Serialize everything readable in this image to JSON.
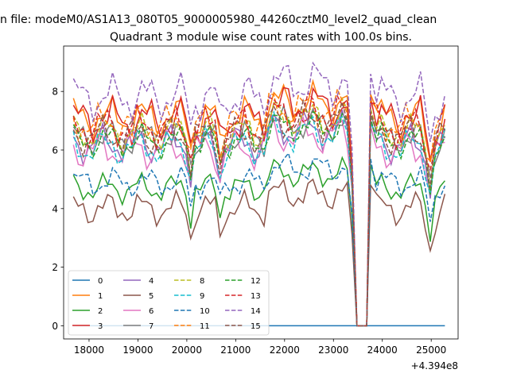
{
  "suptitle": "n file: modeM0/AS1A13_080T05_9000005980_44260cztM0_level2_quad_clean",
  "chart_data": {
    "type": "line",
    "title": "Quadrant 3 module wise count rates with 100.0s bins.",
    "xlabel": "",
    "ylabel": "",
    "x_offset_label": "+4.394e8",
    "xlim": [
      17480,
      25550
    ],
    "ylim": [
      -0.45,
      9.55
    ],
    "x_ticks": [
      18000,
      19000,
      20000,
      21000,
      22000,
      23000,
      24000,
      25000
    ],
    "x_tick_labels": [
      "18000",
      "19000",
      "20000",
      "21000",
      "22000",
      "23000",
      "24000",
      "25000"
    ],
    "y_ticks": [
      0,
      2,
      4,
      6,
      8
    ],
    "y_tick_labels": [
      "0",
      "2",
      "4",
      "6",
      "8"
    ],
    "grid": false,
    "legend": {
      "placement": "lower-left",
      "columns": 4
    },
    "gap": {
      "drop_from": 23380,
      "zero_from": 23480,
      "zero_to": 23680,
      "rise_to": 23760
    },
    "x": [
      17680,
      17780,
      17880,
      17980,
      18080,
      18180,
      18280,
      18380,
      18480,
      18580,
      18680,
      18780,
      18880,
      18980,
      19080,
      19180,
      19280,
      19380,
      19480,
      19580,
      19680,
      19780,
      19880,
      19980,
      20080,
      20180,
      20280,
      20380,
      20480,
      20580,
      20680,
      20780,
      20880,
      20980,
      21080,
      21180,
      21280,
      21380,
      21480,
      21580,
      21680,
      21780,
      21880,
      21980,
      22080,
      22180,
      22280,
      22380,
      22480,
      22580,
      22680,
      22780,
      22880,
      22980,
      23080,
      23180,
      23280,
      23380,
      23480,
      23580,
      23680,
      23760,
      23880,
      23980,
      24080,
      24180,
      24280,
      24380,
      24480,
      24580,
      24680,
      24780,
      24880,
      24980,
      25080,
      25180,
      25280
    ],
    "series": [
      {
        "name": "0",
        "color": "#1f77b4",
        "dash": "solid",
        "mode": "flat",
        "base": 0.0,
        "amp": 0.0,
        "p1": 0.0,
        "p2": 0.0
      },
      {
        "name": "1",
        "color": "#ff7f0e",
        "dash": "solid",
        "mode": "wave",
        "base": 7.1,
        "amp": 0.5,
        "p1": 1.1,
        "p2": 2.3
      },
      {
        "name": "2",
        "color": "#2ca02c",
        "dash": "solid",
        "mode": "wave",
        "base": 4.7,
        "amp": 0.35,
        "p1": 2.0,
        "p2": 0.7
      },
      {
        "name": "3",
        "color": "#d62728",
        "dash": "solid",
        "mode": "wave",
        "base": 7.0,
        "amp": 0.55,
        "p1": 0.4,
        "p2": 1.9
      },
      {
        "name": "4",
        "color": "#9467bd",
        "dash": "solid",
        "mode": "wave",
        "base": 6.2,
        "amp": 0.45,
        "p1": 2.7,
        "p2": 0.2
      },
      {
        "name": "5",
        "color": "#8c564b",
        "dash": "solid",
        "mode": "wave",
        "base": 4.0,
        "amp": 0.4,
        "p1": 1.5,
        "p2": 3.1
      },
      {
        "name": "6",
        "color": "#e377c2",
        "dash": "solid",
        "mode": "wave",
        "base": 6.0,
        "amp": 0.45,
        "p1": 3.3,
        "p2": 1.2
      },
      {
        "name": "7",
        "color": "#7f7f7f",
        "dash": "solid",
        "mode": "wave",
        "base": 6.4,
        "amp": 0.4,
        "p1": 0.9,
        "p2": 2.8
      },
      {
        "name": "8",
        "color": "#bcbd22",
        "dash": "dashed",
        "mode": "wave",
        "base": 6.6,
        "amp": 0.45,
        "p1": 1.8,
        "p2": 0.5
      },
      {
        "name": "9",
        "color": "#17becf",
        "dash": "dashed",
        "mode": "wave",
        "base": 6.1,
        "amp": 0.45,
        "p1": 2.4,
        "p2": 2.0
      },
      {
        "name": "10",
        "color": "#1f77b4",
        "dash": "dashed",
        "mode": "wave",
        "base": 4.9,
        "amp": 0.35,
        "p1": 0.2,
        "p2": 1.4
      },
      {
        "name": "11",
        "color": "#ff7f0e",
        "dash": "dashed",
        "mode": "wave",
        "base": 6.9,
        "amp": 0.45,
        "p1": 3.0,
        "p2": 2.6
      },
      {
        "name": "12",
        "color": "#2ca02c",
        "dash": "dashed",
        "mode": "wave",
        "base": 6.3,
        "amp": 0.4,
        "p1": 1.3,
        "p2": 0.9
      },
      {
        "name": "13",
        "color": "#d62728",
        "dash": "dashed",
        "mode": "wave",
        "base": 6.8,
        "amp": 0.5,
        "p1": 2.2,
        "p2": 3.3
      },
      {
        "name": "14",
        "color": "#9467bd",
        "dash": "dashed",
        "mode": "wave",
        "base": 7.8,
        "amp": 0.55,
        "p1": 0.6,
        "p2": 1.6
      },
      {
        "name": "15",
        "color": "#8c564b",
        "dash": "dashed",
        "mode": "wave",
        "base": 6.5,
        "amp": 0.45,
        "p1": 2.9,
        "p2": 0.3
      }
    ]
  }
}
